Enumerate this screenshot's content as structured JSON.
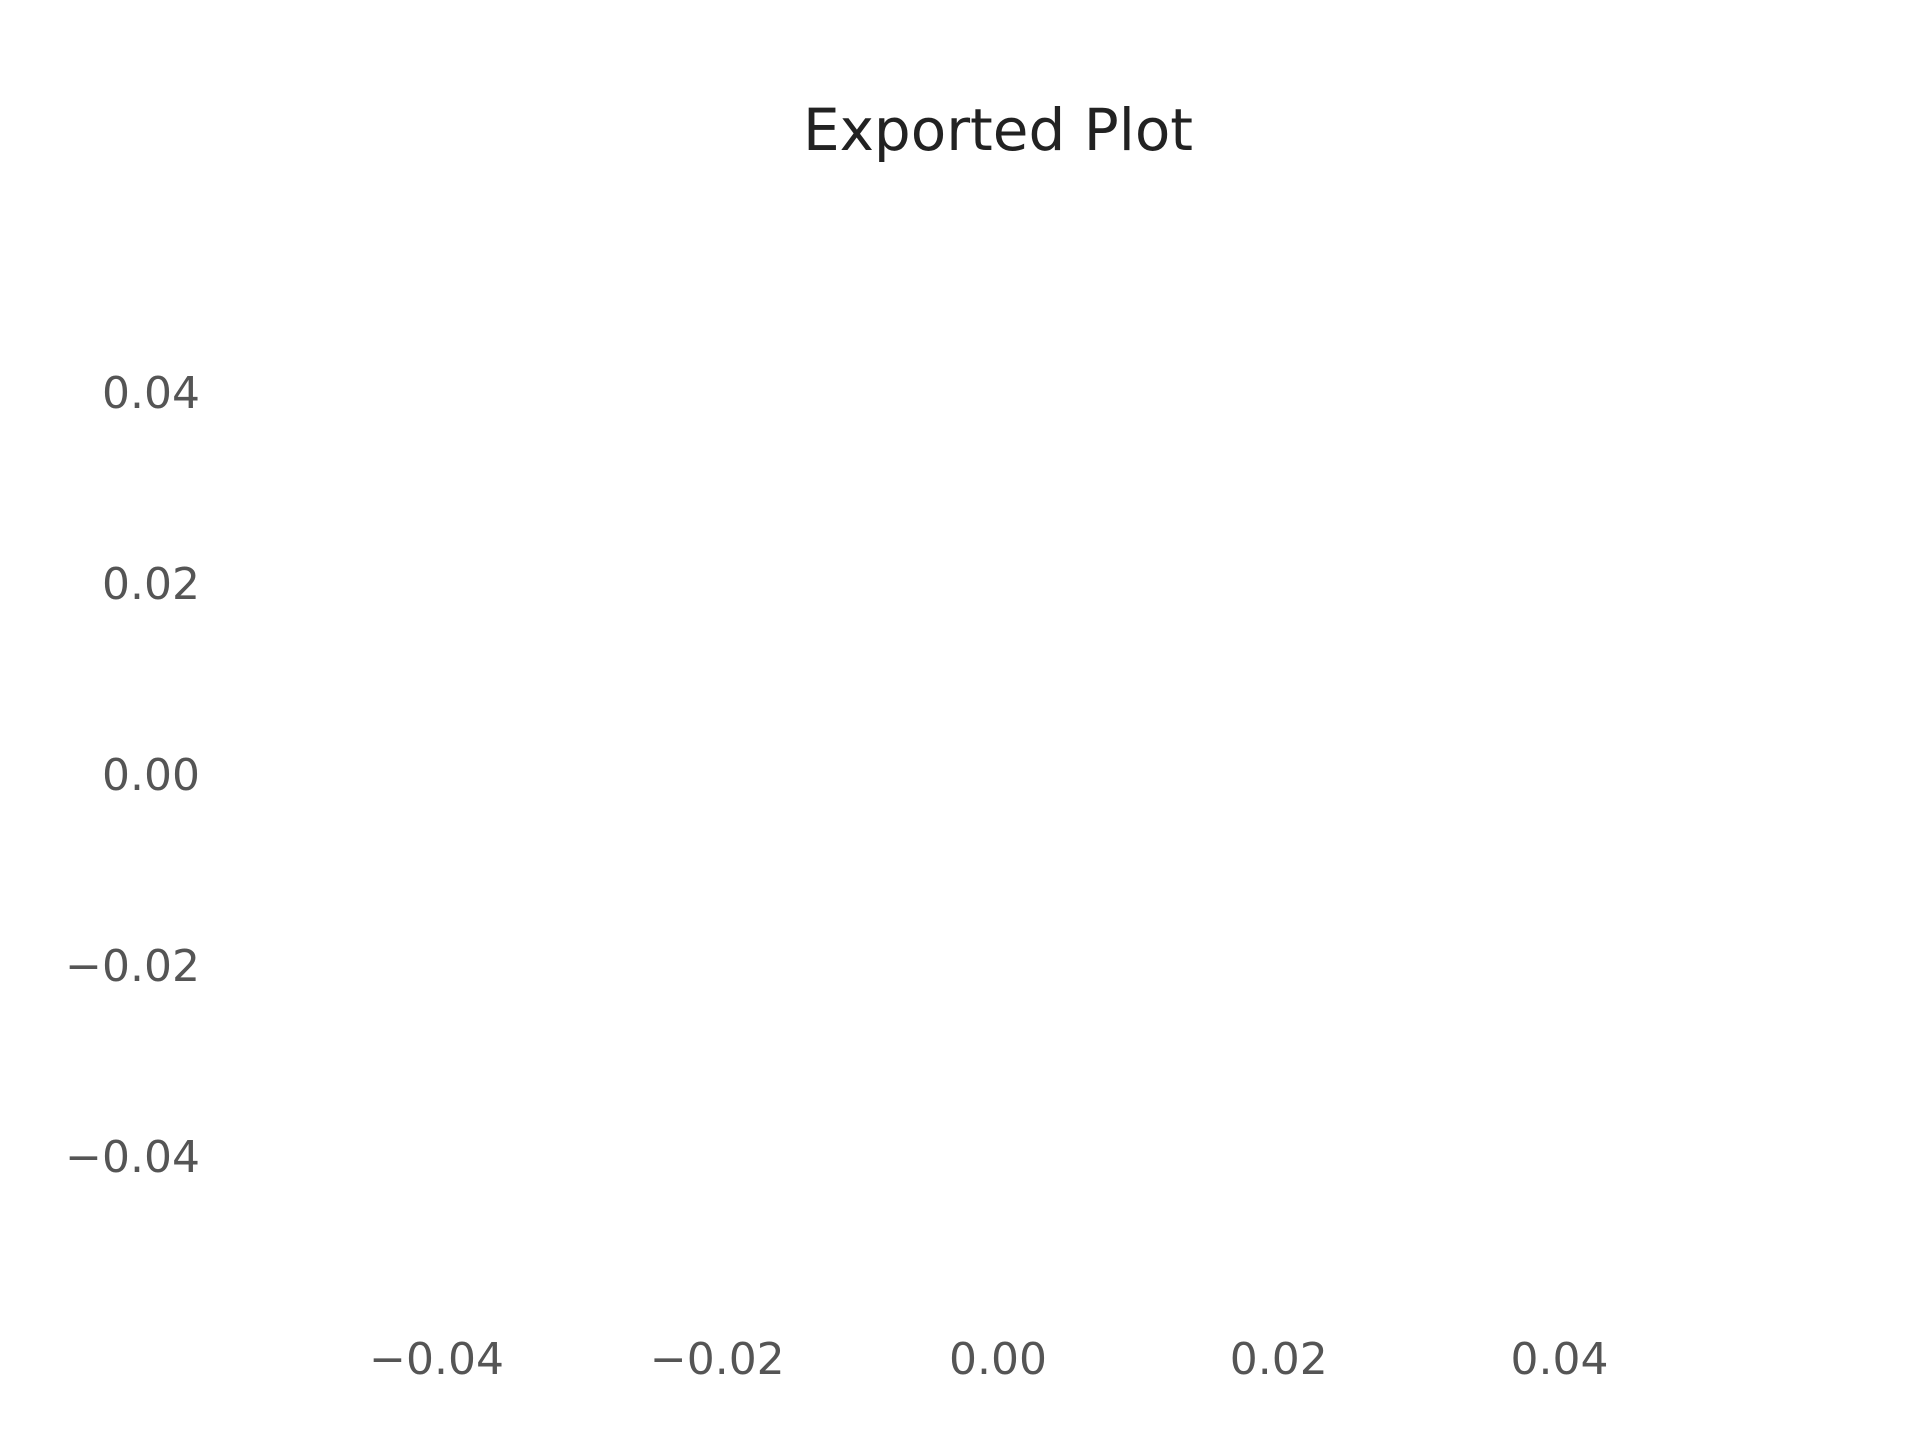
{
  "chart_data": {
    "type": "scatter",
    "title": "Exported Plot",
    "xlabel": "",
    "ylabel": "",
    "xlim": [
      -0.055,
      0.055
    ],
    "ylim": [
      -0.055,
      0.055
    ],
    "x_ticks": [
      -0.04,
      -0.02,
      0.0,
      0.02,
      0.04
    ],
    "x_tick_labels": [
      "−0.04",
      "−0.02",
      "0.00",
      "0.02",
      "0.04"
    ],
    "y_ticks": [
      0.04,
      0.02,
      0.0,
      -0.02,
      -0.04
    ],
    "y_tick_labels": [
      "0.04",
      "0.02",
      "0.00",
      "−0.02",
      "−0.04"
    ],
    "grid": false,
    "series": [],
    "background": "#ffffff",
    "title_color": "#222222",
    "tick_color": "#555555"
  }
}
